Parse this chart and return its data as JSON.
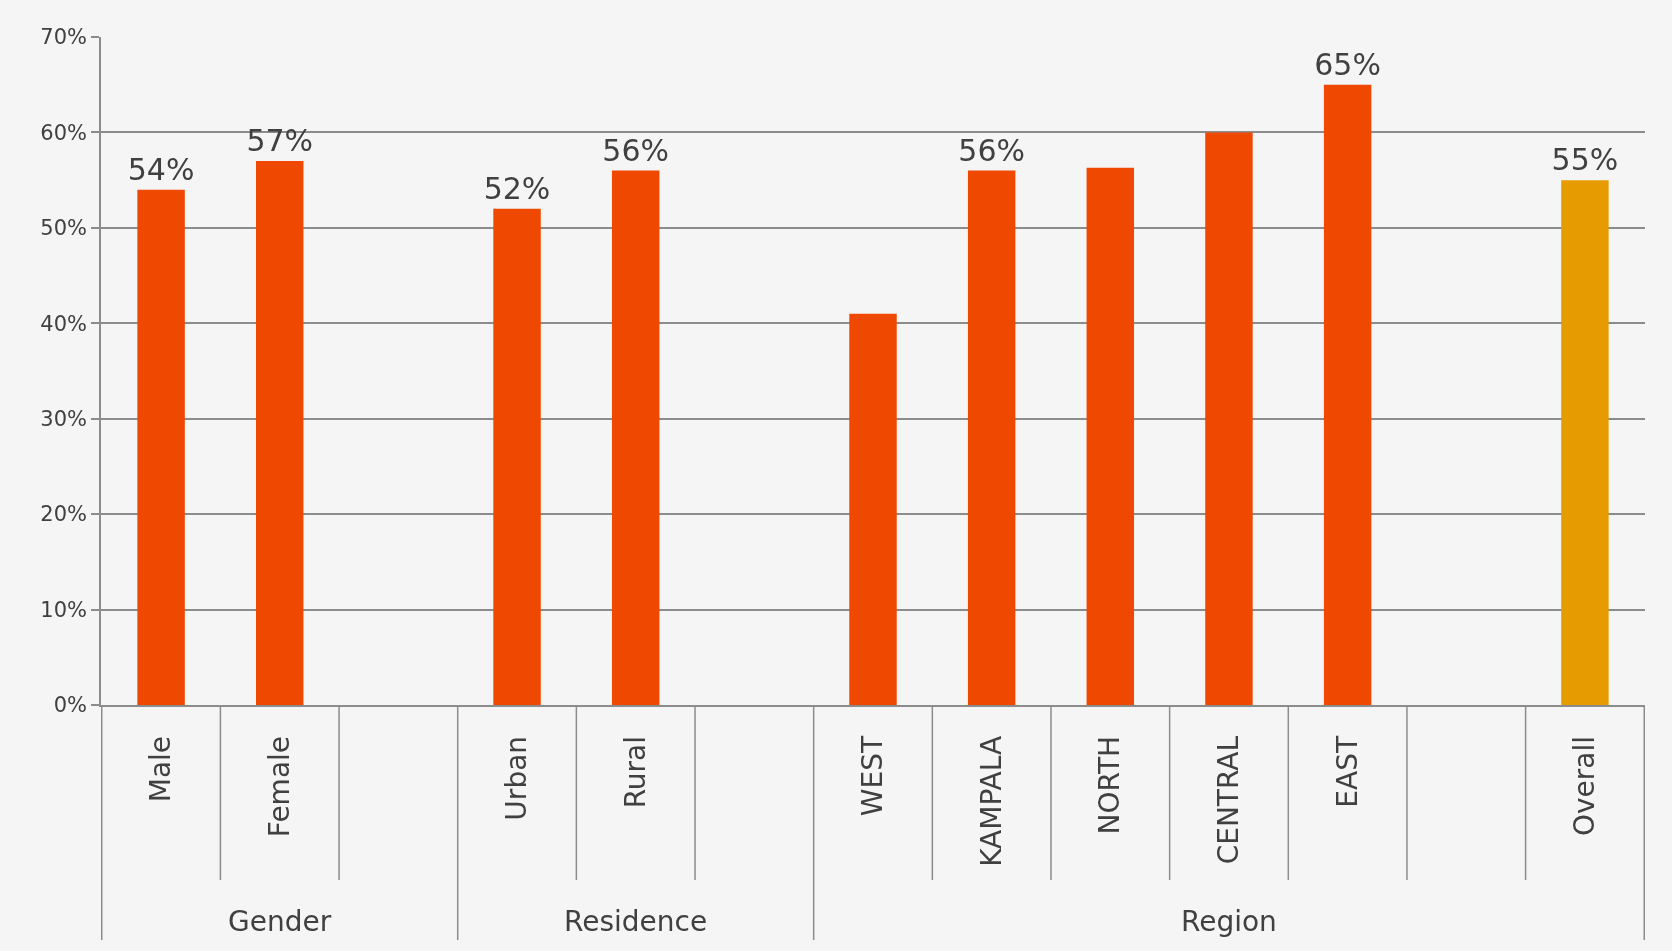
{
  "chart_data": {
    "type": "bar",
    "categories": [
      "Male",
      "Female",
      null,
      "Urban",
      "Rural",
      null,
      "WEST",
      "KAMPALA",
      "NORTH",
      "CENTRAL",
      "EAST",
      null,
      "Overall"
    ],
    "values": [
      54,
      57,
      null,
      52,
      56,
      null,
      41,
      56,
      56.3,
      60,
      65,
      null,
      55
    ],
    "colors": [
      "#ef4800",
      "#ef4800",
      null,
      "#ef4800",
      "#ef4800",
      null,
      "#ef4800",
      "#ef4800",
      "#ef4800",
      "#ef4800",
      "#ef4800",
      null,
      "#e69c00"
    ],
    "value_labels": [
      "54%",
      "57%",
      null,
      "52%",
      "56%",
      null,
      null,
      "56%",
      null,
      null,
      "65%",
      null,
      "55%"
    ],
    "ylim": [
      0,
      70
    ],
    "yticks": [
      {
        "value": 0,
        "label": "0%"
      },
      {
        "value": 10,
        "label": "10%"
      },
      {
        "value": 20,
        "label": "20%"
      },
      {
        "value": 30,
        "label": "30%"
      },
      {
        "value": 40,
        "label": "40%"
      },
      {
        "value": 50,
        "label": "50%"
      },
      {
        "value": 60,
        "label": "60%"
      },
      {
        "value": 70,
        "label": "70%"
      }
    ],
    "grid": "y",
    "annotations": [
      "Gender",
      "Residence",
      "Region"
    ]
  }
}
